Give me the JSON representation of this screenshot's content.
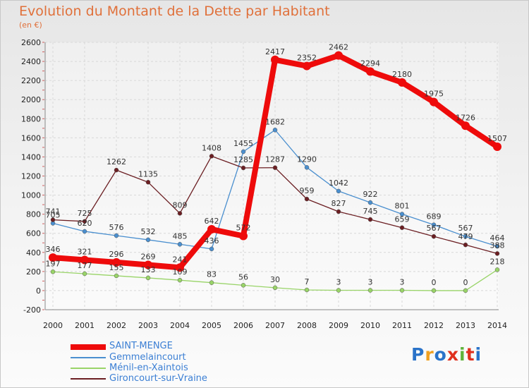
{
  "title": "Evolution du Montant de la Dette par Habitant",
  "subtitle": "(en €)",
  "brand": {
    "letters": [
      "P",
      "r",
      "o",
      "x",
      "i",
      "t",
      "i"
    ],
    "colors": [
      "#2a73c9",
      "#f0a020",
      "#2a73c9",
      "#e0301e",
      "#5fb33b",
      "#e0301e",
      "#2a73c9"
    ]
  },
  "chart_data": {
    "type": "line",
    "x": [
      2000,
      2001,
      2002,
      2003,
      2004,
      2005,
      2006,
      2007,
      2008,
      2009,
      2010,
      2011,
      2012,
      2013,
      2014
    ],
    "ylim": [
      -200,
      2600
    ],
    "yticks": [
      -200,
      0,
      200,
      400,
      600,
      800,
      1000,
      1200,
      1400,
      1600,
      1800,
      2000,
      2200,
      2400,
      2600
    ],
    "grid": true,
    "legend_position": "bottom-left",
    "series": [
      {
        "name": "Gemmelaincourt",
        "color": "#4a8fcf",
        "values": [
          705,
          620,
          576,
          532,
          485,
          436,
          1455,
          1682,
          1290,
          1042,
          922,
          801,
          689,
          567,
          464
        ]
      },
      {
        "name": "Ménil-en-Xaintois",
        "color": "#99d468",
        "values": [
          197,
          177,
          155,
          133,
          109,
          83,
          56,
          30,
          7,
          3,
          3,
          3,
          0,
          0,
          218
        ]
      },
      {
        "name": "Gironcourt-sur-Vraine",
        "color": "#6b1e22",
        "values": [
          741,
          725,
          1262,
          1135,
          809,
          1408,
          1285,
          1287,
          959,
          827,
          745,
          659,
          567,
          479,
          388
        ]
      },
      {
        "name": "SAINT-MENGE",
        "color": "#ee0b0b",
        "values": [
          346,
          321,
          296,
          269,
          241,
          642,
          572,
          2417,
          2352,
          2462,
          2294,
          2180,
          1975,
          1726,
          1507
        ]
      }
    ]
  }
}
